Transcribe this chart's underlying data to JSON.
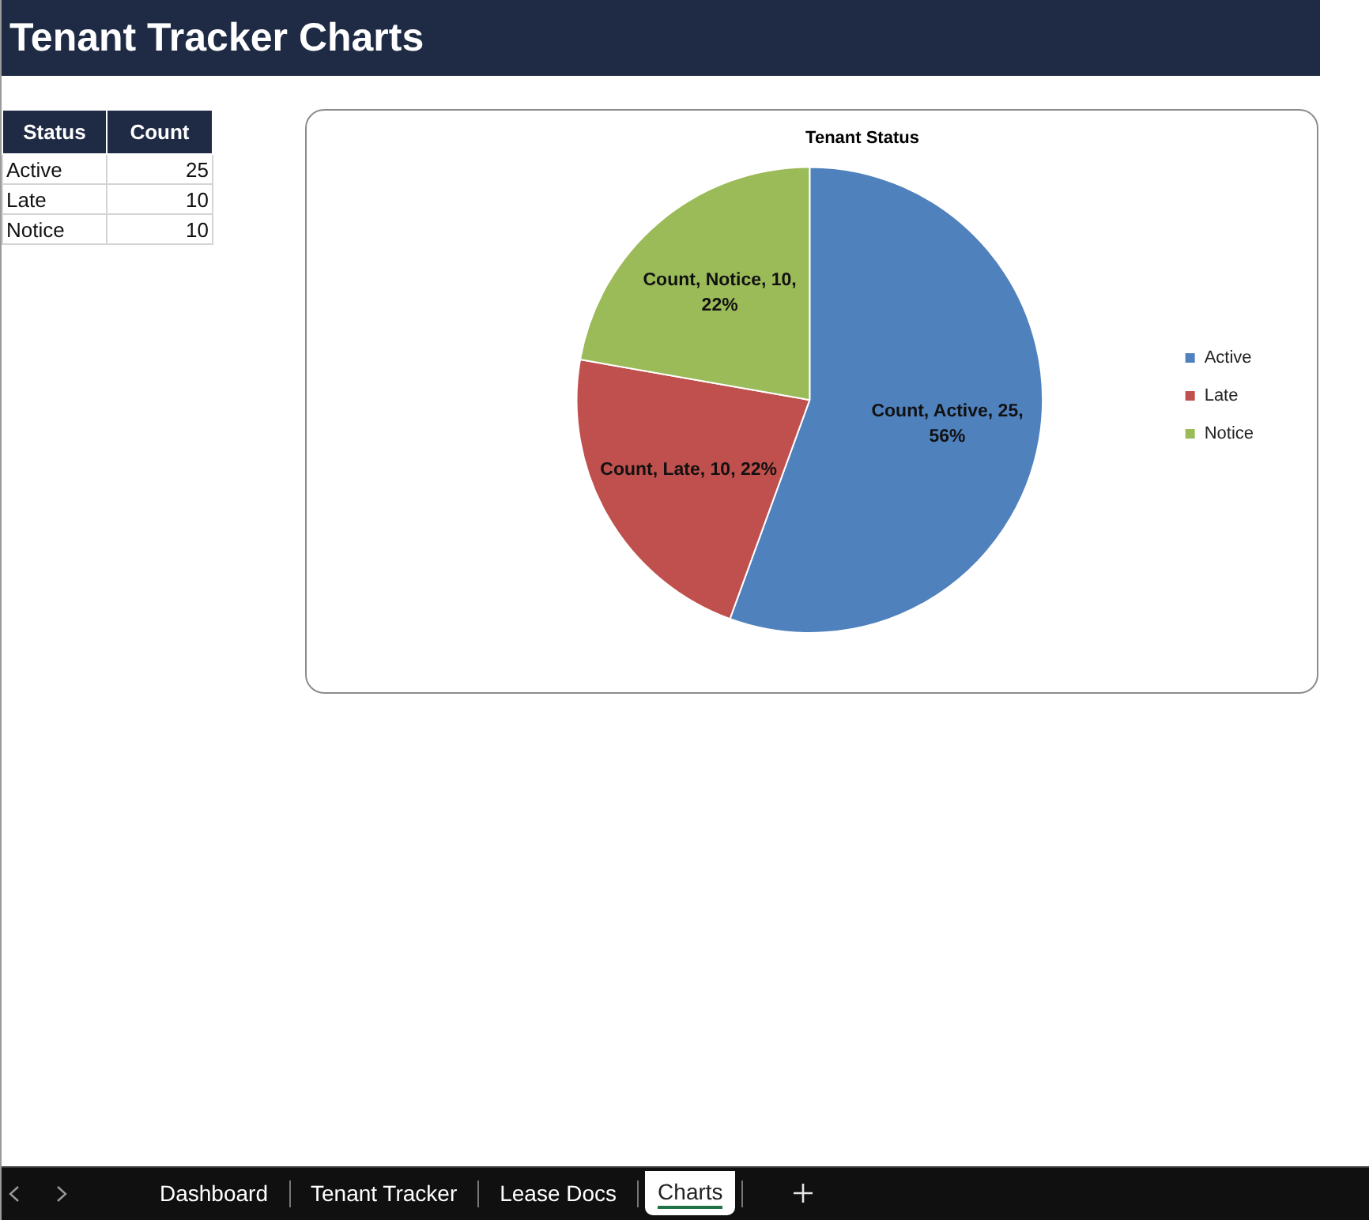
{
  "chart_data": [
    {
      "type": "other",
      "title": "Tenant Tracker Charts",
      "xlabel": "Status",
      "ylabel": "Count",
      "categories": [
        "Active",
        "Late",
        "Notice"
      ],
      "values": [
        25,
        10,
        10
      ],
      "data_labels": true,
      "annotations": [
        "Dashboard",
        "Tenant Tracker",
        "Lease Docs",
        "Charts"
      ]
    },
    {
      "type": "pie",
      "title": "Tenant Status",
      "categories": [
        "Active",
        "Late",
        "Notice"
      ],
      "values": [
        25,
        10,
        10
      ],
      "colors": [
        "#4f81bd",
        "#c0504d",
        "#9bbb59"
      ],
      "value_labels": [
        "Count, Active, 25, 56%",
        "Count, Late, 10, 22%",
        "Count, Notice, 10, 22%"
      ],
      "legend": "right"
    }
  ]
}
